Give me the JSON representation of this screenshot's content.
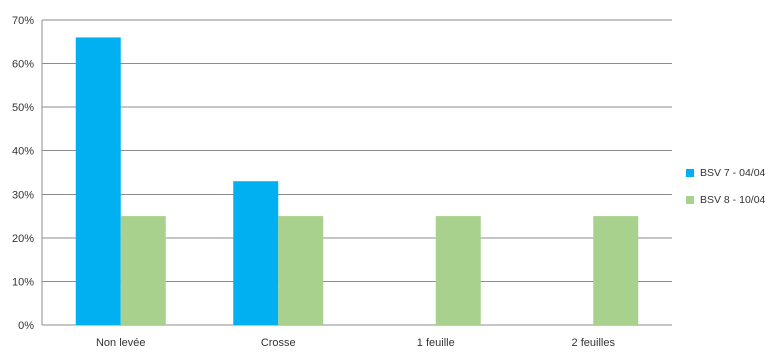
{
  "chart_data": {
    "type": "bar",
    "categories": [
      "Non levée",
      "Crosse",
      "1 feuille",
      "2 feuilles"
    ],
    "series": [
      {
        "name": "BSV 7 - 04/04",
        "values": [
          66,
          33,
          0,
          0
        ],
        "color": "#00b0f0"
      },
      {
        "name": "BSV 8 - 10/04",
        "values": [
          25,
          25,
          25,
          25
        ],
        "color": "#a9d18e"
      }
    ],
    "yticks": [
      "0%",
      "10%",
      "20%",
      "30%",
      "40%",
      "50%",
      "60%",
      "70%"
    ],
    "ylim": [
      0,
      70
    ],
    "grid": true,
    "legend_position": "right"
  }
}
